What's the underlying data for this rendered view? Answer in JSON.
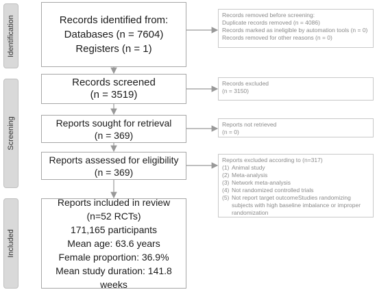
{
  "stages": [
    "Identification",
    "Screening",
    "Included"
  ],
  "boxes": [
    {
      "lines": [
        "Records identified from:",
        "Databases (n = 7604)",
        "Registers (n = 1)"
      ]
    },
    {
      "lines": [
        "Records screened",
        "(n = 3519)"
      ]
    },
    {
      "lines": [
        "Reports sought for retrieval",
        "(n = 369)"
      ]
    },
    {
      "lines": [
        "Reports assessed for eligibility",
        "(n = 369)"
      ]
    },
    {
      "lines": [
        "Reports included in review",
        "(n=52 RCTs)",
        "171,165 participants",
        "Mean age: 63.6 years",
        "Female proportion: 36.9%",
        "Mean study duration: 141.8 weeks"
      ]
    }
  ],
  "side_boxes": [
    {
      "lines": [
        "Records removed before screening:",
        "Duplicate records removed  (n = 4086)",
        "Records marked as ineligible by automation tools (n = 0)",
        "Records removed for other reasons (n = 0)"
      ]
    },
    {
      "lines": [
        "Records excluded",
        "(n = 3150)"
      ]
    },
    {
      "lines": [
        "Reports not retrieved",
        "(n = 0)"
      ]
    },
    {
      "lines": [
        "Reports excluded according to (n=317)"
      ],
      "items": [
        {
          "number": "(1)",
          "text": "Animal study"
        },
        {
          "number": "(2)",
          "text": "Meta-analysis"
        },
        {
          "number": "(3)",
          "text": "Network meta-analysis"
        },
        {
          "number": "(4)",
          "text": "Not randomized controlled trials"
        },
        {
          "number": "(5)",
          "text": "Not report target outcomeStudies randomizing subjects with high baseline imbalance or improper randomization"
        }
      ]
    }
  ]
}
